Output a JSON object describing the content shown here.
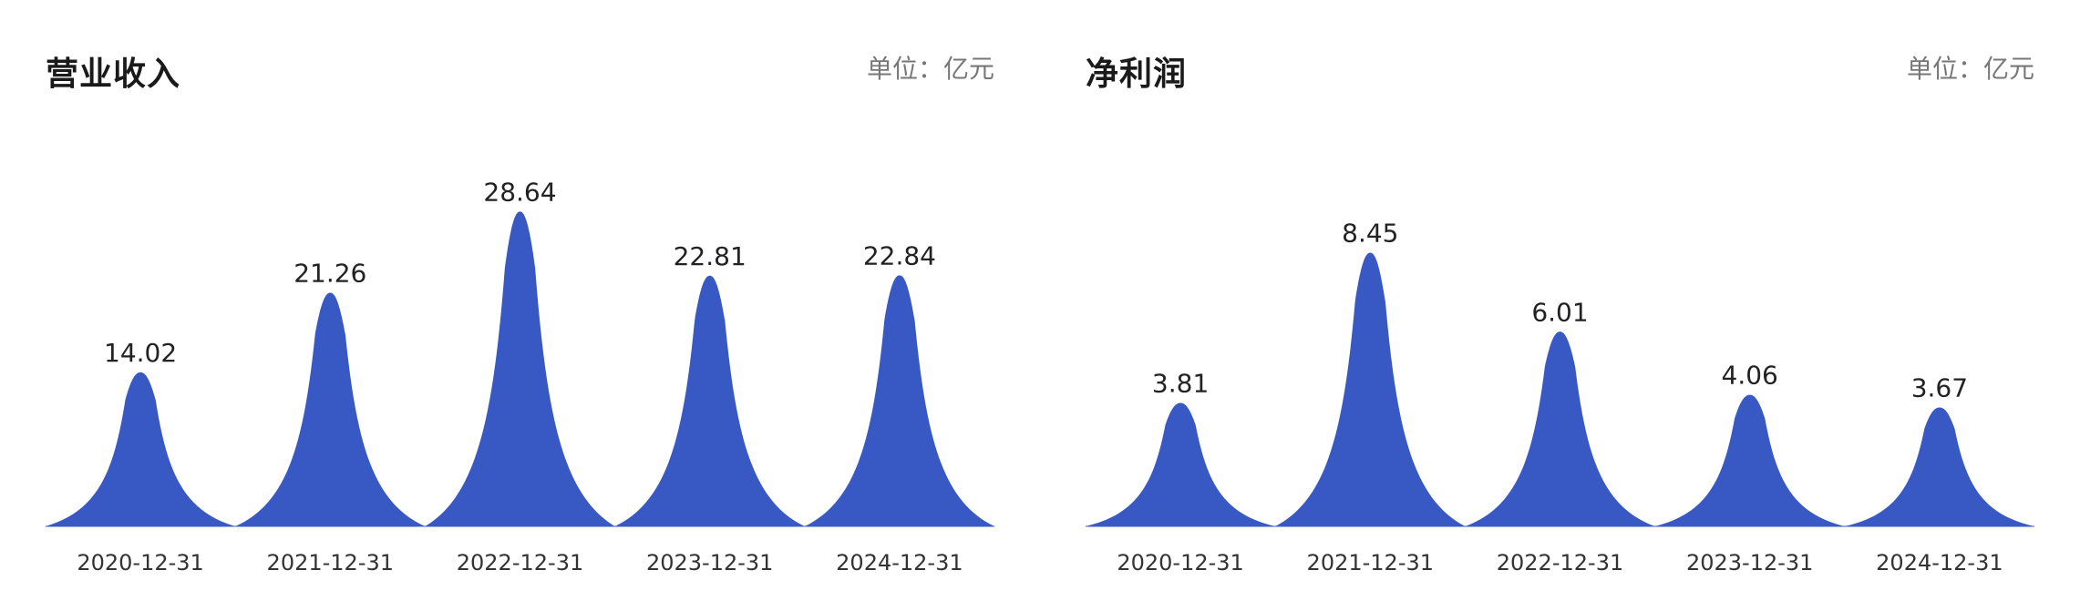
{
  "chart_data": [
    {
      "type": "area",
      "title": "营业收入",
      "unit": "单位：亿元",
      "categories": [
        "2020-12-31",
        "2021-12-31",
        "2022-12-31",
        "2023-12-31",
        "2024-12-31"
      ],
      "values": [
        14.02,
        21.26,
        28.64,
        22.81,
        22.84
      ],
      "value_labels": [
        "14.02",
        "21.26",
        "28.64",
        "22.81",
        "22.84"
      ],
      "ylim": [
        0,
        30
      ],
      "grid": false,
      "color": "#3858c4"
    },
    {
      "type": "area",
      "title": "净利润",
      "unit": "单位：亿元",
      "categories": [
        "2020-12-31",
        "2021-12-31",
        "2022-12-31",
        "2023-12-31",
        "2024-12-31"
      ],
      "values": [
        3.81,
        8.45,
        6.01,
        4.06,
        3.67
      ],
      "value_labels": [
        "3.81",
        "8.45",
        "6.01",
        "4.06",
        "3.67"
      ],
      "ylim": [
        0,
        9
      ],
      "grid": false,
      "color": "#3858c4"
    }
  ]
}
